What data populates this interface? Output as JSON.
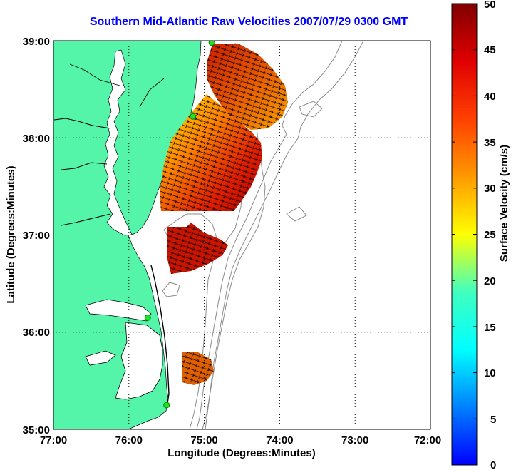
{
  "title": "Southern Mid-Atlantic Raw Velocities 2007/07/29 0300 GMT",
  "map": {
    "x_label": "Longitude (Degrees:Minutes)",
    "y_label": "Latitude (Degrees:Minutes)",
    "x_ticks": [
      "77:00",
      "76:00",
      "75:00",
      "74:00",
      "73:00",
      "72:00"
    ],
    "y_ticks": [
      "39:00",
      "38:00",
      "37:00",
      "36:00",
      "35:00"
    ],
    "lon_range": [
      -77,
      -72
    ],
    "lat_range": [
      35,
      39
    ],
    "land_color": "#55f5a9",
    "contour_color": "#8c8c8c",
    "grid": "dotted"
  },
  "colorbar": {
    "label": "Surface Velocity (cm/s)",
    "ticks": [
      "50",
      "45",
      "40",
      "35",
      "30",
      "25",
      "20",
      "15",
      "10",
      "5",
      "0"
    ],
    "range": [
      0,
      50
    ],
    "colormap": "jet"
  },
  "stations": [
    {
      "lon": -74.9,
      "lat": 38.98
    },
    {
      "lon": -75.15,
      "lat": 38.22
    },
    {
      "lon": -75.75,
      "lat": 36.15
    },
    {
      "lon": -75.5,
      "lat": 35.25
    }
  ]
}
